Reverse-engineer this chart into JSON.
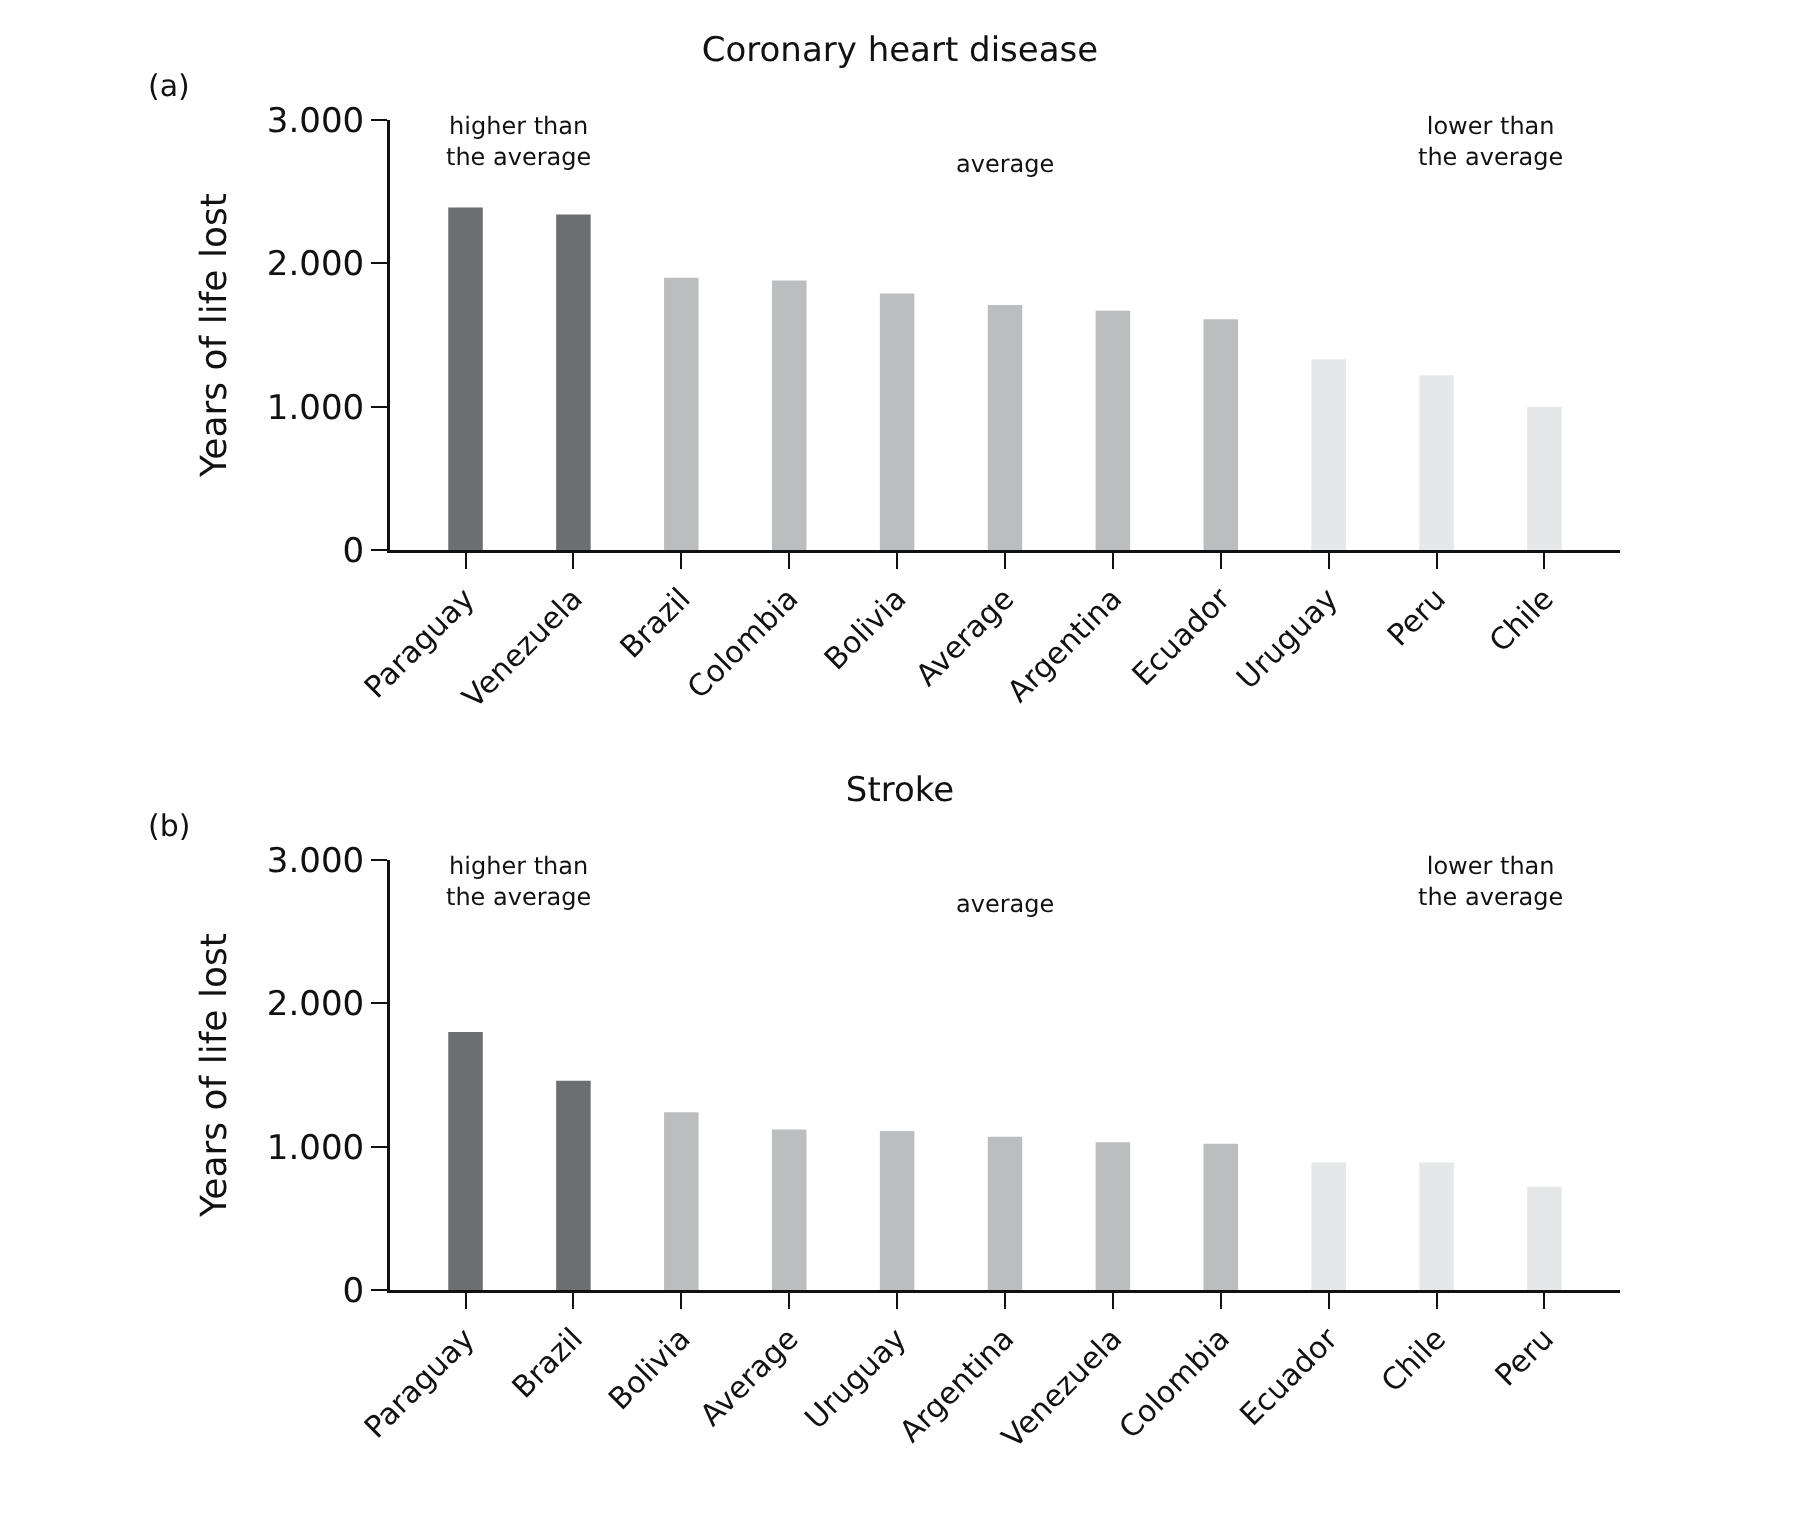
{
  "chart_data": [
    {
      "type": "bar",
      "title": "Coronary heart disease",
      "ylabel": "Years of life lost",
      "categories": [
        "Paraguay",
        "Venezuela",
        "Brazil",
        "Colombia",
        "Bolivia",
        "Average",
        "Argentina",
        "Ecuador",
        "Uruguay",
        "Peru",
        "Chile"
      ],
      "values": [
        2390,
        2340,
        1900,
        1880,
        1790,
        1710,
        1670,
        1610,
        1330,
        1220,
        1000
      ],
      "colors": [
        "#6d6e70",
        "#6d6e70",
        "#bcbdbf",
        "#bcbdbf",
        "#bcbdbf",
        "#bcbdbf",
        "#bcbdbf",
        "#bcbdbf",
        "#e6e7e8",
        "#e6e7e8",
        "#e6e7e8"
      ],
      "ylim": [
        0,
        3000
      ],
      "yticks": [
        0,
        {
          "value": 1000,
          "label": "1.000"
        },
        {
          "value": 2000,
          "label": "2.000"
        },
        {
          "value": 3000,
          "label": "3.000"
        }
      ],
      "grid": false,
      "annotations": [
        "(a)",
        "higher than\nthe average",
        "average",
        "lower than\nthe average"
      ]
    },
    {
      "type": "bar",
      "title": "Stroke",
      "ylabel": "Years of life lost",
      "categories": [
        "Paraguay",
        "Brazil",
        "Bolivia",
        "Average",
        "Uruguay",
        "Argentina",
        "Venezuela",
        "Colombia",
        "Ecuador",
        "Chile",
        "Peru"
      ],
      "values": [
        1800,
        1460,
        1240,
        1120,
        1110,
        1070,
        1030,
        1020,
        890,
        890,
        720
      ],
      "colors": [
        "#6d6e70",
        "#6d6e70",
        "#bcbdbf",
        "#bcbdbf",
        "#bcbdbf",
        "#bcbdbf",
        "#bcbdbf",
        "#bcbdbf",
        "#e6e7e8",
        "#e6e7e8",
        "#e6e7e8"
      ],
      "ylim": [
        0,
        3000
      ],
      "yticks": [
        0,
        {
          "value": 1000,
          "label": "1.000"
        },
        {
          "value": 2000,
          "label": "2.000"
        },
        {
          "value": 3000,
          "label": "3.000"
        }
      ],
      "grid": false,
      "annotations": [
        "(b)",
        "higher than\nthe average",
        "average",
        "lower than\nthe average"
      ]
    }
  ]
}
